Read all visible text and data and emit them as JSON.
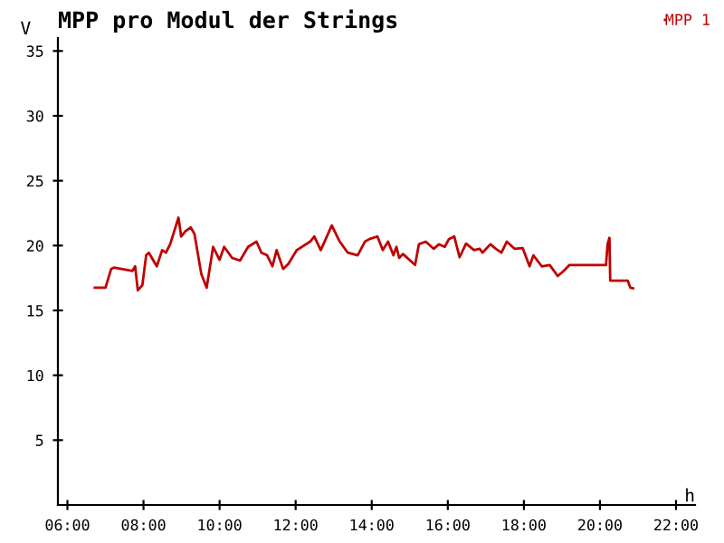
{
  "chart_data": {
    "type": "line",
    "title": "MPP pro Modul der Strings",
    "xlabel": "h",
    "ylabel": "V",
    "x": [
      6.72,
      7.0,
      7.15,
      7.22,
      7.71,
      7.78,
      7.85,
      7.97,
      8.07,
      8.14,
      8.35,
      8.49,
      8.59,
      8.7,
      8.92,
      8.99,
      9.1,
      9.24,
      9.34,
      9.52,
      9.66,
      9.83,
      10.0,
      10.12,
      10.33,
      10.54,
      10.75,
      10.97,
      11.1,
      11.25,
      11.39,
      11.5,
      11.67,
      11.81,
      12.03,
      12.38,
      12.49,
      12.66,
      12.95,
      13.16,
      13.37,
      13.63,
      13.82,
      13.94,
      14.15,
      14.29,
      14.43,
      14.57,
      14.65,
      14.72,
      14.82,
      15.14,
      15.24,
      15.42,
      15.63,
      15.77,
      15.92,
      16.03,
      16.17,
      16.31,
      16.48,
      16.69,
      16.84,
      16.91,
      17.12,
      17.26,
      17.41,
      17.55,
      17.76,
      17.97,
      18.15,
      18.25,
      18.47,
      18.68,
      18.89,
      19.03,
      19.2,
      20.16,
      20.2,
      20.25,
      20.27,
      20.73,
      20.8,
      20.87
    ],
    "series": [
      {
        "name": "MPP 1",
        "color": "#c00000",
        "values": [
          16.75,
          16.75,
          18.2,
          18.3,
          18.05,
          18.4,
          16.55,
          16.95,
          19.25,
          19.45,
          18.4,
          19.65,
          19.45,
          20.1,
          22.15,
          20.7,
          21.1,
          21.4,
          20.9,
          17.8,
          16.75,
          19.9,
          18.9,
          19.9,
          19.05,
          18.85,
          19.9,
          20.3,
          19.45,
          19.25,
          18.4,
          19.65,
          18.2,
          18.6,
          19.65,
          20.3,
          20.7,
          19.65,
          21.55,
          20.3,
          19.45,
          19.25,
          20.3,
          20.5,
          20.7,
          19.65,
          20.3,
          19.25,
          19.9,
          19.05,
          19.35,
          18.5,
          20.1,
          20.3,
          19.75,
          20.1,
          19.9,
          20.5,
          20.7,
          19.1,
          20.15,
          19.65,
          19.75,
          19.45,
          20.1,
          19.75,
          19.45,
          20.3,
          19.75,
          19.8,
          18.4,
          19.25,
          18.4,
          18.5,
          17.65,
          18.0,
          18.5,
          18.5,
          20.1,
          20.6,
          17.3,
          17.3,
          16.75,
          16.7
        ]
      }
    ],
    "xlim": [
      5.75,
      22.5
    ],
    "ylim": [
      0,
      36
    ],
    "xticks": [
      {
        "value": 6,
        "label": "06:00"
      },
      {
        "value": 8,
        "label": "08:00"
      },
      {
        "value": 10,
        "label": "10:00"
      },
      {
        "value": 12,
        "label": "12:00"
      },
      {
        "value": 14,
        "label": "14:00"
      },
      {
        "value": 16,
        "label": "16:00"
      },
      {
        "value": 18,
        "label": "18:00"
      },
      {
        "value": 20,
        "label": "20:00"
      },
      {
        "value": 22,
        "label": "22:00"
      }
    ],
    "yticks": [
      5,
      10,
      15,
      20,
      25,
      30,
      35
    ],
    "legend": "top right",
    "grid": false,
    "marker": "none",
    "line_style": "solid"
  }
}
